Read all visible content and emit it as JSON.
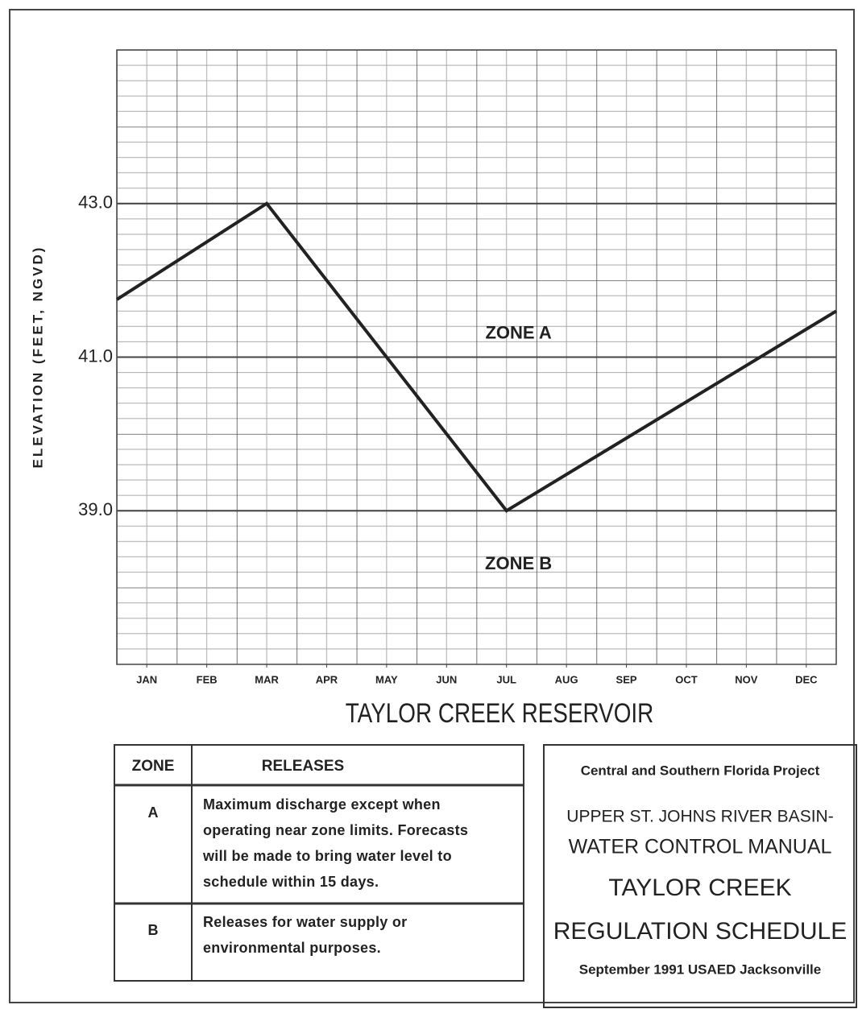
{
  "chart_data": {
    "type": "line",
    "y_label": "ELEVATION (FEET, NGVD)",
    "x_label": "TAYLOR CREEK RESERVOIR",
    "x": [
      0,
      2.5,
      6.5,
      12
    ],
    "values": [
      41.75,
      43.0,
      39.0,
      41.6
    ],
    "color": "#222222",
    "xlim": [
      0,
      12
    ],
    "xticks": [
      {
        "value": 0.5,
        "label": "JAN"
      },
      {
        "value": 1.5,
        "label": "FEB"
      },
      {
        "value": 2.5,
        "label": "MAR"
      },
      {
        "value": 3.5,
        "label": "APR"
      },
      {
        "value": 4.5,
        "label": "MAY"
      },
      {
        "value": 5.5,
        "label": "JUN"
      },
      {
        "value": 6.5,
        "label": "JUL"
      },
      {
        "value": 7.5,
        "label": "AUG"
      },
      {
        "value": 8.5,
        "label": "SEP"
      },
      {
        "value": 9.5,
        "label": "OCT"
      },
      {
        "value": 10.5,
        "label": "NOV"
      },
      {
        "value": 11.5,
        "label": "DEC"
      }
    ],
    "ylim": [
      37,
      45
    ],
    "yticks": [
      {
        "value": 39,
        "label": "39.0"
      },
      {
        "value": 41,
        "label": "41.0"
      },
      {
        "value": 43,
        "label": "43.0"
      }
    ],
    "grid": true,
    "annotations": [
      {
        "text": "ZONE A",
        "x": 6.7,
        "y": 41.3
      },
      {
        "text": "ZONE B",
        "x": 6.7,
        "y": 38.3
      }
    ]
  },
  "table": {
    "headers": [
      "ZONE",
      "RELEASES"
    ],
    "rows": [
      [
        "A",
        [
          "Maximum discharge except when",
          "operating near zone limits.  Forecasts",
          "will be made to bring water level to",
          "schedule within 15 days."
        ]
      ],
      [
        "B",
        [
          "Releases for water supply or",
          "environmental purposes."
        ]
      ]
    ]
  },
  "title_block": [
    "Central and Southern Florida Project",
    "UPPER ST. JOHNS RIVER BASIN-",
    "WATER CONTROL MANUAL",
    "TAYLOR CREEK",
    "REGULATION SCHEDULE",
    "September 1991 USAED Jacksonville"
  ]
}
